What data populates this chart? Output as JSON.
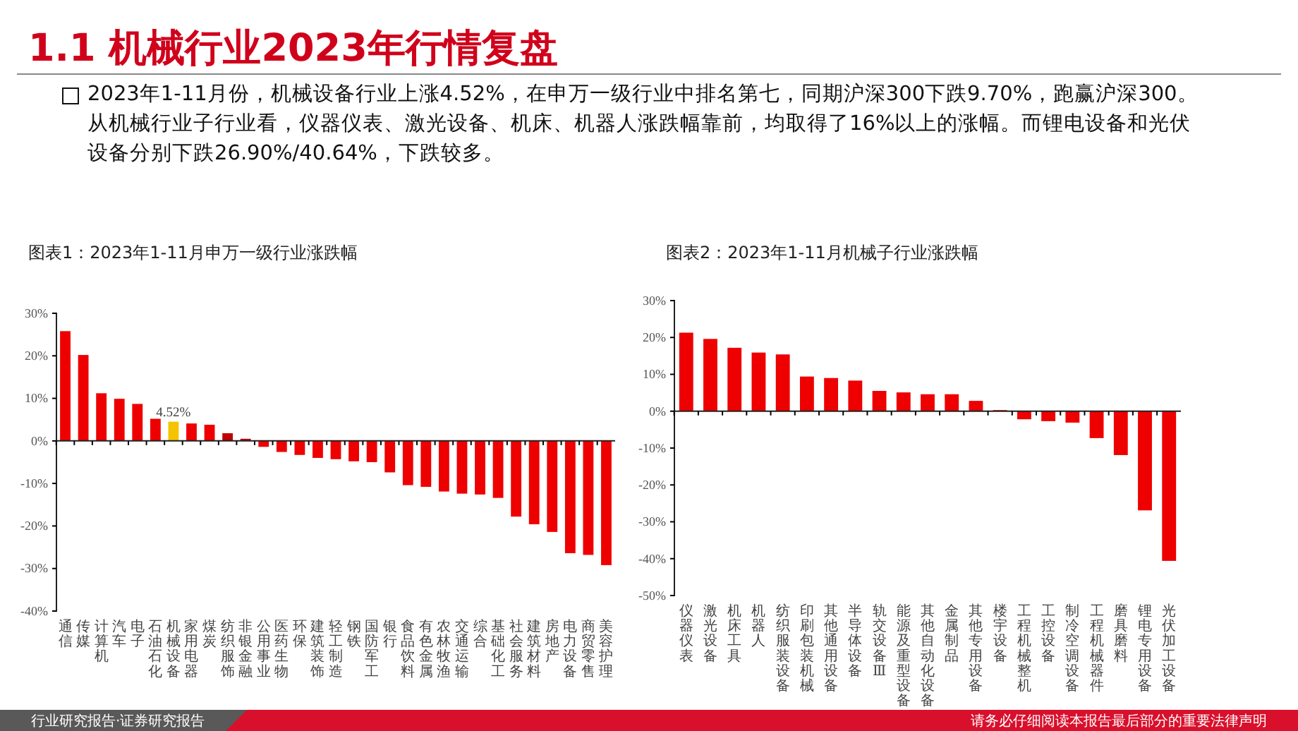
{
  "chart_data": [
    {
      "type": "bar",
      "title": "图表1：2023年1-11月申万一级行业涨跌幅",
      "annotations": [
        "1.1 机械行业2023年行情复盘",
        "2023年1-11月份，机械设备行业上涨4.52%，在申万一级行业中排名第七，同期沪深300下跌9.70%，跑赢沪深300。从机械行业子行业看，仪器仪表、激光设备、机床、机器人涨跌幅靠前，均取得了16%以上的涨幅。而锂电设备和光伏设备分别下跌26.90%/40.64%，下跌较多。",
        "行业研究报告·证券研究报告",
        "请务必仔细阅读本报告最后部分的重要法律声明"
      ],
      "categories": [
        "通信",
        "传媒",
        "计算机",
        "汽车",
        "电子",
        "石油石化",
        "机械设备",
        "家用电器",
        "煤炭",
        "纺织服饰",
        "非银金融",
        "公用事业",
        "医药生物",
        "环保",
        "建筑装饰",
        "轻工制造",
        "钢铁",
        "国防军工",
        "银行",
        "食品饮料",
        "有色金属",
        "农林牧渔",
        "交通运输",
        "综合",
        "基础化工",
        "社会服务",
        "建筑材料",
        "房地产",
        "电力设备",
        "商贸零售",
        "美容护理"
      ],
      "values": [
        25.8,
        20.2,
        11.2,
        9.9,
        8.7,
        5.2,
        4.52,
        4.1,
        3.8,
        1.8,
        0.5,
        -1.4,
        -2.6,
        -3.3,
        -4.0,
        -4.3,
        -4.8,
        -5.0,
        -7.4,
        -10.4,
        -10.8,
        -11.9,
        -12.4,
        -12.6,
        -13.4,
        -17.8,
        -19.6,
        -21.4,
        -26.4,
        -26.8,
        -29.2
      ],
      "colors": [
        "#ee0000",
        "#ee0000",
        "#ee0000",
        "#ee0000",
        "#ee0000",
        "#ee0000",
        "#f5c400",
        "#ee0000",
        "#ee0000",
        "#c00000",
        "#c00000",
        "#ee0000",
        "#ee0000",
        "#ee0000",
        "#ee0000",
        "#ee0000",
        "#ee0000",
        "#ee0000",
        "#ee0000",
        "#ee0000",
        "#ee0000",
        "#ee0000",
        "#ee0000",
        "#ee0000",
        "#ee0000",
        "#ee0000",
        "#ee0000",
        "#ee0000",
        "#ee0000",
        "#ee0000",
        "#ee0000"
      ],
      "value_labels": [
        null,
        null,
        null,
        null,
        null,
        null,
        "4.52%",
        null,
        null,
        null,
        null,
        null,
        null,
        null,
        null,
        null,
        null,
        null,
        null,
        null,
        null,
        null,
        null,
        null,
        null,
        null,
        null,
        null,
        null,
        null,
        null
      ],
      "ylim": [
        -40,
        30
      ],
      "yticks": [
        {
          "value": -40,
          "label": "-40%"
        },
        {
          "value": -30,
          "label": "-30%"
        },
        {
          "value": -20,
          "label": "-20%"
        },
        {
          "value": -10,
          "label": "-10%"
        },
        {
          "value": 0,
          "label": "0%"
        },
        {
          "value": 10,
          "label": "10%"
        },
        {
          "value": 20,
          "label": "20%"
        },
        {
          "value": 30,
          "label": "30%"
        }
      ]
    },
    {
      "type": "bar",
      "title": "图表2：2023年1-11月机械子行业涨跌幅",
      "categories": [
        "仪器仪表",
        "激光设备",
        "机床工具",
        "机器人",
        "纺织服装设备",
        "印刷包装机械",
        "其他通用设备",
        "半导体设备",
        "轨交设备Ⅲ",
        "能源及重型设备",
        "其他自动化设备",
        "金属制品",
        "其他专用设备",
        "楼宇设备",
        "工程机械整机",
        "工控设备",
        "制冷空调设备",
        "工程机械器件",
        "磨具磨料",
        "锂电专用设备",
        "光伏加工设备"
      ],
      "values": [
        21.3,
        19.6,
        17.2,
        15.9,
        15.4,
        9.4,
        9.0,
        8.3,
        5.5,
        5.1,
        4.6,
        4.6,
        2.8,
        0.3,
        -2.2,
        -2.7,
        -3.1,
        -7.3,
        -11.9,
        -26.9,
        -40.6
      ],
      "color": "#ee0000",
      "ylim": [
        -50,
        30
      ],
      "yticks": [
        {
          "value": -50,
          "label": "-50%"
        },
        {
          "value": -40,
          "label": "-40%"
        },
        {
          "value": -30,
          "label": "-30%"
        },
        {
          "value": -20,
          "label": "-20%"
        },
        {
          "value": -10,
          "label": "-10%"
        },
        {
          "value": 0,
          "label": "0%"
        },
        {
          "value": 10,
          "label": "10%"
        },
        {
          "value": 20,
          "label": "20%"
        },
        {
          "value": 30,
          "label": "30%"
        }
      ]
    }
  ]
}
